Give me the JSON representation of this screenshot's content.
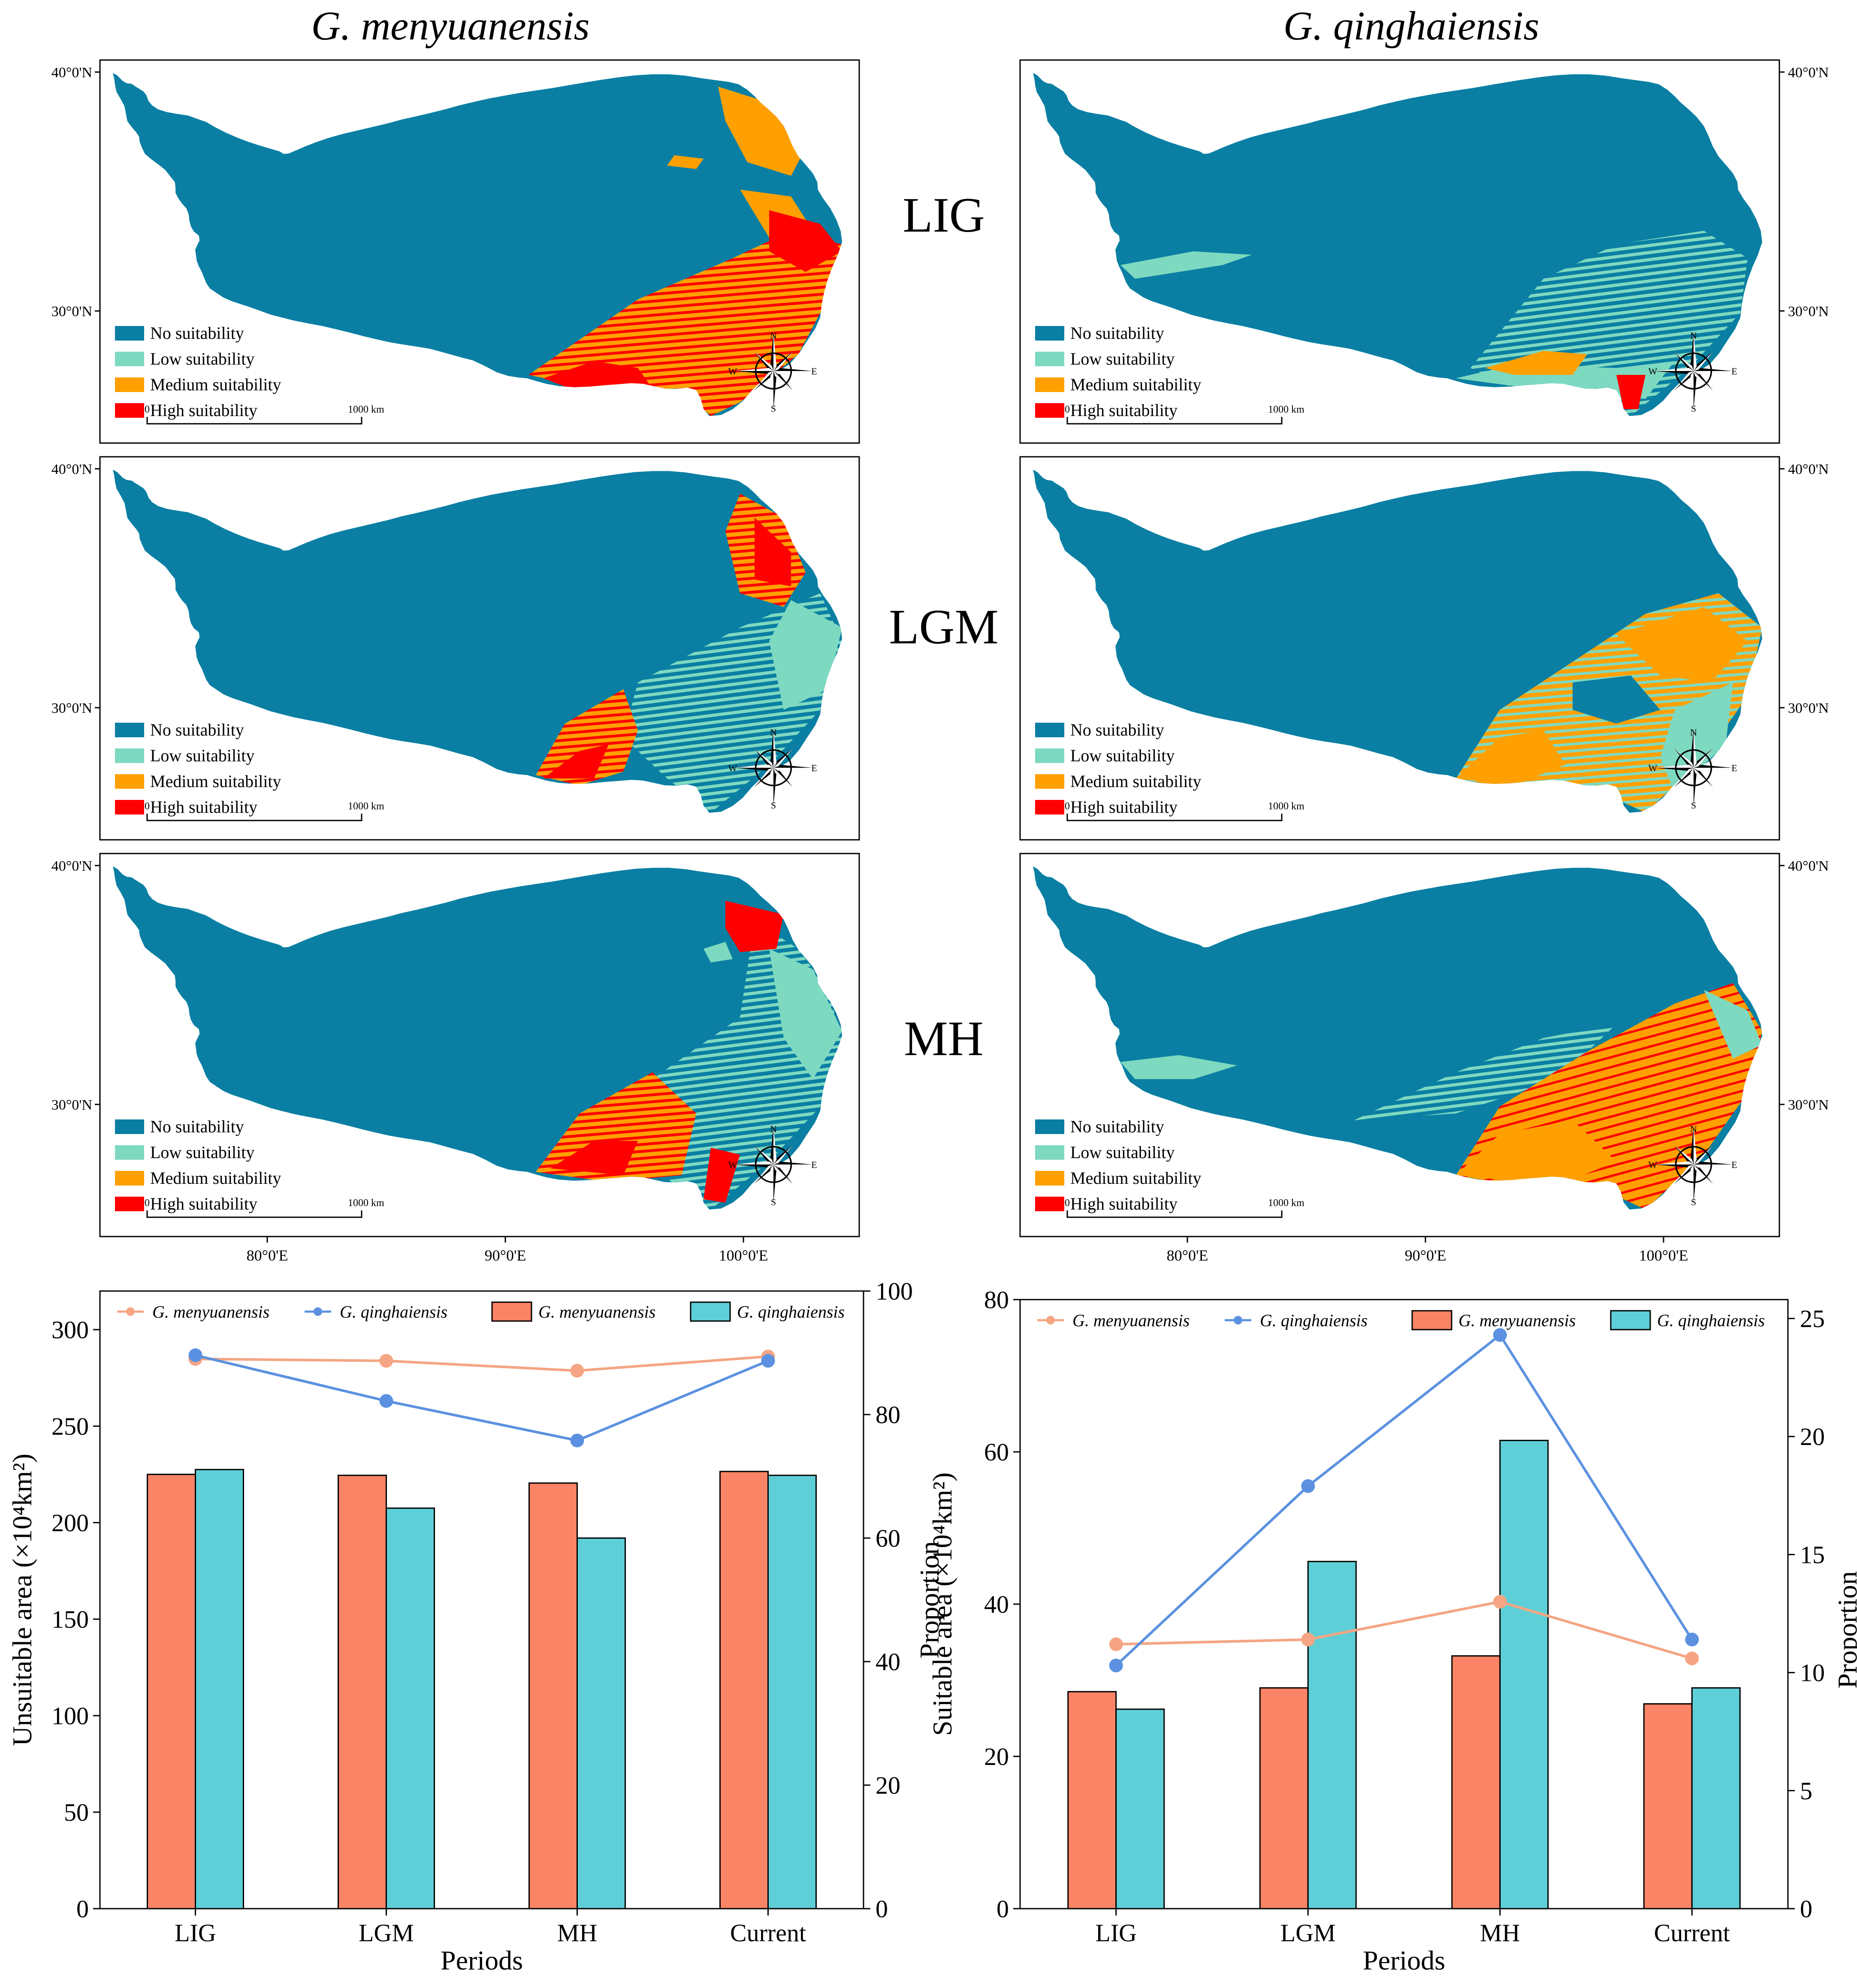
{
  "species_titles": [
    "G. menyuanensis",
    "G. qinghaiensis"
  ],
  "periods": [
    "LIG",
    "LGM",
    "MH"
  ],
  "lat_labels": [
    "40°0'N",
    "30°0'N"
  ],
  "lon_labels": [
    "80°0'E",
    "90°0'E",
    "100°0'E"
  ],
  "legend": {
    "items": [
      {
        "label": "No suitability",
        "color": "#0a7fa3"
      },
      {
        "label": "Low suitability",
        "color": "#7ed9c1"
      },
      {
        "label": "Medium suitability",
        "color": "#ffa000"
      },
      {
        "label": "High suitability",
        "color": "#ff0000"
      }
    ]
  },
  "scalebar": {
    "start": "0",
    "end": "1000 km"
  },
  "compass": {
    "n": "N",
    "s": "S",
    "e": "E",
    "w": "W"
  },
  "maps": [
    {
      "species": "G. menyuanensis",
      "period": "LIG",
      "regions": [
        {
          "class": "High suitability",
          "area": "southeast and southern margin"
        },
        {
          "class": "Medium suitability",
          "area": "northeast margin"
        }
      ]
    },
    {
      "species": "G. qinghaiensis",
      "period": "LIG",
      "regions": [
        {
          "class": "Low suitability",
          "area": "southeast"
        },
        {
          "class": "Medium suitability",
          "area": "southern margin"
        },
        {
          "class": "High suitability",
          "area": "small patch in the south"
        }
      ]
    },
    {
      "species": "G. menyuanensis",
      "period": "LGM",
      "regions": [
        {
          "class": "High suitability",
          "area": "northeast and south"
        },
        {
          "class": "Low suitability",
          "area": "eastern edge"
        }
      ]
    },
    {
      "species": "G. qinghaiensis",
      "period": "LGM",
      "regions": [
        {
          "class": "Medium suitability",
          "area": "southeast"
        },
        {
          "class": "Low suitability",
          "area": "eastern edge"
        }
      ]
    },
    {
      "species": "G. menyuanensis",
      "period": "MH",
      "regions": [
        {
          "class": "High suitability",
          "area": "northeast and south"
        },
        {
          "class": "Low suitability",
          "area": "eastern edge"
        }
      ]
    },
    {
      "species": "G. qinghaiensis",
      "period": "MH",
      "regions": [
        {
          "class": "Medium suitability",
          "area": "southeast"
        },
        {
          "class": "High suitability",
          "area": "southeast"
        },
        {
          "class": "Low suitability",
          "area": "south-west margin"
        }
      ]
    }
  ],
  "chart_data": [
    {
      "type": "bar",
      "categories": [
        "LIG",
        "LGM",
        "MH",
        "Current"
      ],
      "xlabel": "Periods",
      "ylabel": "Unsuitable area (×10⁴km²)",
      "y2label": "Proportion",
      "ylim": [
        0,
        320
      ],
      "y2lim": [
        0,
        100
      ],
      "yticks": [
        0,
        50,
        100,
        150,
        200,
        250,
        300
      ],
      "y2ticks": [
        0,
        20,
        40,
        60,
        80,
        100
      ],
      "series": [
        {
          "name": "G. menyuanensis",
          "kind": "bar",
          "axis": "left",
          "color": "#fa8466",
          "values": [
            225,
            224.5,
            220.5,
            226.5
          ]
        },
        {
          "name": "G. qinghaiensis",
          "kind": "bar",
          "axis": "left",
          "color": "#5ecfd6",
          "values": [
            227.5,
            207.5,
            192,
            224.5
          ]
        },
        {
          "name": "G. menyuanensis",
          "kind": "line",
          "axis": "right",
          "color": "#f5a583",
          "values": [
            89,
            88.7,
            87.1,
            89.4
          ]
        },
        {
          "name": "G. qinghaiensis",
          "kind": "line",
          "axis": "right",
          "color": "#5b91e0",
          "values": [
            89.6,
            82.2,
            75.8,
            88.7
          ]
        }
      ],
      "legend_order": [
        2,
        3,
        0,
        1
      ]
    },
    {
      "type": "bar",
      "categories": [
        "LIG",
        "LGM",
        "MH",
        "Current"
      ],
      "xlabel": "Periods",
      "ylabel": "Suitable area (×10⁴km²)",
      "y2label": "Proportion",
      "ylim": [
        0,
        80
      ],
      "y2lim": [
        0,
        25.8
      ],
      "yticks": [
        0,
        20,
        40,
        60,
        80
      ],
      "y2ticks": [
        0,
        5,
        10,
        15,
        20,
        25
      ],
      "series": [
        {
          "name": "G. menyuanensis",
          "kind": "bar",
          "axis": "left",
          "color": "#fa8466",
          "values": [
            28.5,
            29,
            33.2,
            26.9
          ]
        },
        {
          "name": "G. qinghaiensis",
          "kind": "bar",
          "axis": "left",
          "color": "#5ecfd6",
          "values": [
            26.2,
            45.6,
            61.5,
            29
          ]
        },
        {
          "name": "G. menyuanensis",
          "kind": "line",
          "axis": "right",
          "color": "#f5a583",
          "values": [
            11.2,
            11.4,
            13,
            10.6
          ]
        },
        {
          "name": "G. qinghaiensis",
          "kind": "line",
          "axis": "right",
          "color": "#5b91e0",
          "values": [
            10.3,
            17.9,
            24.3,
            11.4
          ]
        }
      ],
      "legend_order": [
        2,
        3,
        0,
        1
      ]
    }
  ]
}
